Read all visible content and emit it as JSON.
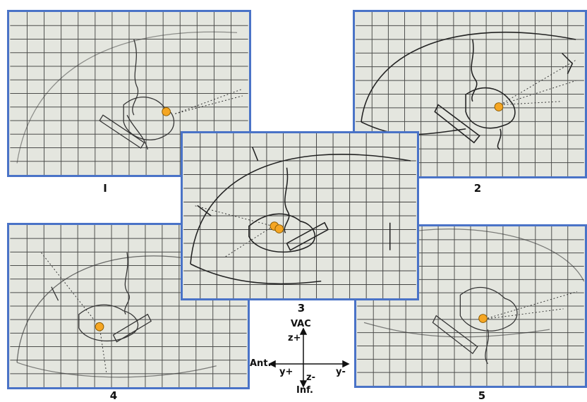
{
  "figures": [
    {
      "id": "p1",
      "label": "I"
    },
    {
      "id": "p2",
      "label": "2"
    },
    {
      "id": "p3",
      "label": "3"
    },
    {
      "id": "p4",
      "label": "4"
    },
    {
      "id": "p5",
      "label": "5"
    }
  ],
  "axis_legend": {
    "top": "VAC",
    "z_plus": "z+",
    "z_minus": "z-",
    "y_plus": "y+",
    "y_minus": "y-",
    "anterior": "Ant.",
    "inferior": "Inf."
  },
  "colors": {
    "frame": "#4a73c7",
    "target_marker": "#f5a623",
    "sketch": "#222222",
    "grid": "#1a1a1a",
    "paper": "#e4e6df"
  }
}
